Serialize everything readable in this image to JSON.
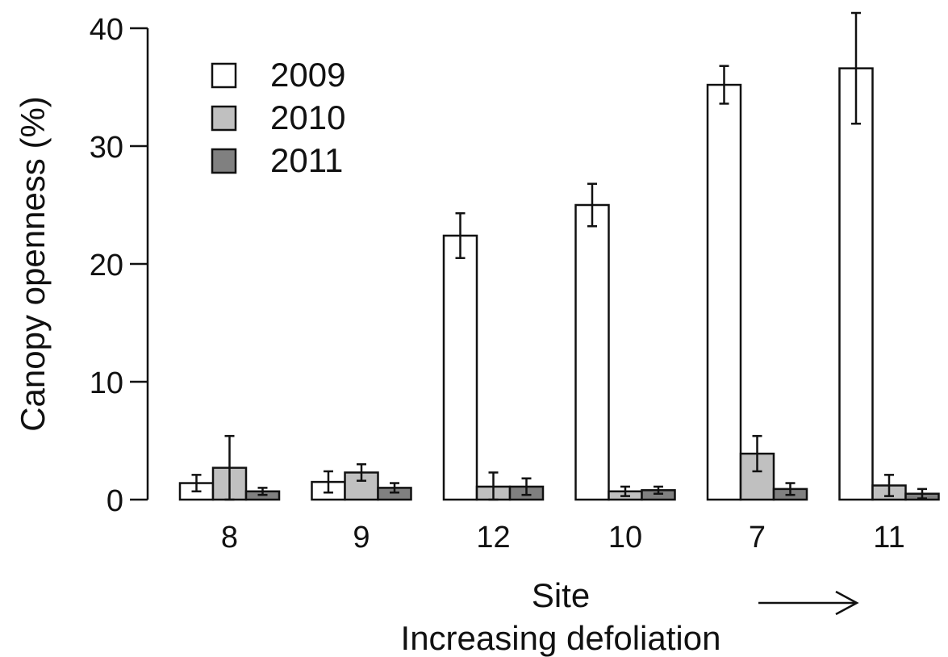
{
  "chart_data": {
    "type": "bar",
    "categories": [
      "8",
      "9",
      "12",
      "10",
      "7",
      "11"
    ],
    "series": [
      {
        "name": "2009",
        "color": "#ffffff",
        "values": [
          1.4,
          1.5,
          22.4,
          25.0,
          35.2,
          36.6
        ],
        "errors": [
          0.7,
          0.9,
          1.9,
          1.8,
          1.6,
          4.7
        ]
      },
      {
        "name": "2010",
        "color": "#c0c0c0",
        "values": [
          2.7,
          2.3,
          1.1,
          0.7,
          3.9,
          1.2
        ],
        "errors": [
          2.7,
          0.7,
          1.2,
          0.4,
          1.5,
          0.9
        ]
      },
      {
        "name": "2011",
        "color": "#808080",
        "values": [
          0.7,
          1.0,
          1.1,
          0.8,
          0.9,
          0.5
        ],
        "errors": [
          0.3,
          0.4,
          0.7,
          0.3,
          0.5,
          0.4
        ]
      }
    ],
    "ylabel": "Canopy openness (%)",
    "xlabel": "Site",
    "annotation": "Increasing defoliation",
    "annotation_arrow": "→",
    "yticks": [
      0,
      10,
      20,
      30,
      40
    ],
    "ylim": [
      0,
      40
    ],
    "legend_position": "top-left",
    "grid": false
  }
}
